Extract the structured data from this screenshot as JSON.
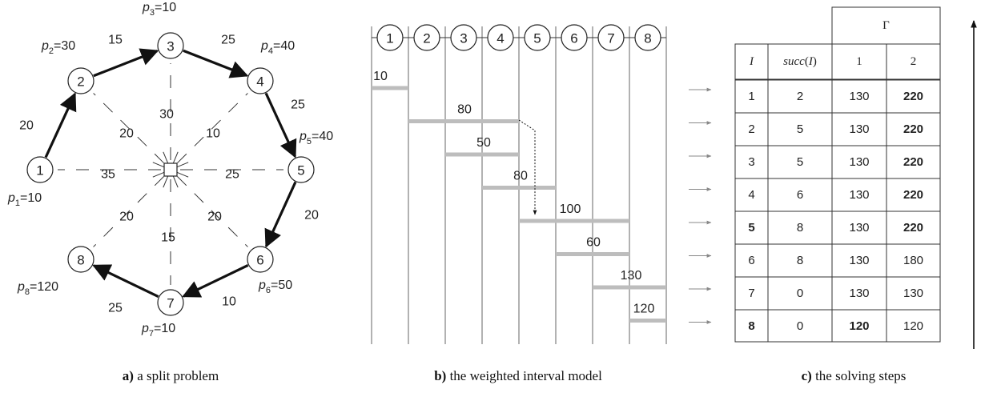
{
  "panel_a": {
    "caption_bold": "a)",
    "caption_rest": " a split problem",
    "center_label": "",
    "nodes": [
      {
        "id": "1",
        "p_label": "p",
        "p_sub": "1",
        "p_value": "=10"
      },
      {
        "id": "2",
        "p_label": "p",
        "p_sub": "2",
        "p_value": "=30"
      },
      {
        "id": "3",
        "p_label": "p",
        "p_sub": "3",
        "p_value": "=10"
      },
      {
        "id": "4",
        "p_label": "p",
        "p_sub": "4",
        "p_value": "=40"
      },
      {
        "id": "5",
        "p_label": "p",
        "p_sub": "5",
        "p_value": "=40"
      },
      {
        "id": "6",
        "p_label": "p",
        "p_sub": "6",
        "p_value": "=50"
      },
      {
        "id": "7",
        "p_label": "p",
        "p_sub": "7",
        "p_value": "=10"
      },
      {
        "id": "8",
        "p_label": "p",
        "p_sub": "8",
        "p_value": "=120"
      }
    ],
    "arc_weights": [
      {
        "from": "1",
        "to": "2",
        "w": "20"
      },
      {
        "from": "2",
        "to": "3",
        "w": "15"
      },
      {
        "from": "3",
        "to": "4",
        "w": "25"
      },
      {
        "from": "4",
        "to": "5",
        "w": "25"
      },
      {
        "from": "5",
        "to": "6",
        "w": "20"
      },
      {
        "from": "6",
        "to": "7",
        "w": "10"
      },
      {
        "from": "7",
        "to": "8",
        "w": "25"
      }
    ],
    "spoke_weights": [
      {
        "node": "1",
        "w": "35"
      },
      {
        "node": "2",
        "w": "20"
      },
      {
        "node": "3",
        "w": "30"
      },
      {
        "node": "4",
        "w": "10"
      },
      {
        "node": "5",
        "w": "25"
      },
      {
        "node": "6",
        "w": "20"
      },
      {
        "node": "7",
        "w": "15"
      },
      {
        "node": "8",
        "w": "20"
      }
    ]
  },
  "panel_b": {
    "caption_bold": "b)",
    "caption_rest": " the weighted interval model",
    "columns": [
      "1",
      "2",
      "3",
      "4",
      "5",
      "6",
      "7",
      "8"
    ],
    "intervals": [
      {
        "start": 1,
        "end": 2,
        "weight": "10"
      },
      {
        "start": 2,
        "end": 5,
        "weight": "80"
      },
      {
        "start": 3,
        "end": 5,
        "weight": "50"
      },
      {
        "start": 4,
        "end": 6,
        "weight": "80"
      },
      {
        "start": 5,
        "end": 8,
        "weight": "100"
      },
      {
        "start": 6,
        "end": 8,
        "weight": "60"
      },
      {
        "start": 7,
        "end": 9,
        "weight": "130"
      },
      {
        "start": 8,
        "end": 9,
        "weight": "120"
      }
    ]
  },
  "panel_c": {
    "caption_bold": "c)",
    "caption_rest": " the solving steps",
    "gamma_header": "Γ",
    "col_headers": [
      "I",
      "succ(I)",
      "1",
      "2"
    ],
    "rows": [
      {
        "I": "1",
        "succ": "2",
        "g1": "130",
        "g2": "220",
        "bold_I": false,
        "bold_g1": false,
        "bold_g2": true
      },
      {
        "I": "2",
        "succ": "5",
        "g1": "130",
        "g2": "220",
        "bold_I": false,
        "bold_g1": false,
        "bold_g2": true
      },
      {
        "I": "3",
        "succ": "5",
        "g1": "130",
        "g2": "220",
        "bold_I": false,
        "bold_g1": false,
        "bold_g2": true
      },
      {
        "I": "4",
        "succ": "6",
        "g1": "130",
        "g2": "220",
        "bold_I": false,
        "bold_g1": false,
        "bold_g2": true
      },
      {
        "I": "5",
        "succ": "8",
        "g1": "130",
        "g2": "220",
        "bold_I": true,
        "bold_g1": false,
        "bold_g2": true
      },
      {
        "I": "6",
        "succ": "8",
        "g1": "130",
        "g2": "180",
        "bold_I": false,
        "bold_g1": false,
        "bold_g2": false
      },
      {
        "I": "7",
        "succ": "0",
        "g1": "130",
        "g2": "130",
        "bold_I": false,
        "bold_g1": false,
        "bold_g2": false
      },
      {
        "I": "8",
        "succ": "0",
        "g1": "120",
        "g2": "120",
        "bold_I": true,
        "bold_g1": true,
        "bold_g2": false
      }
    ]
  }
}
